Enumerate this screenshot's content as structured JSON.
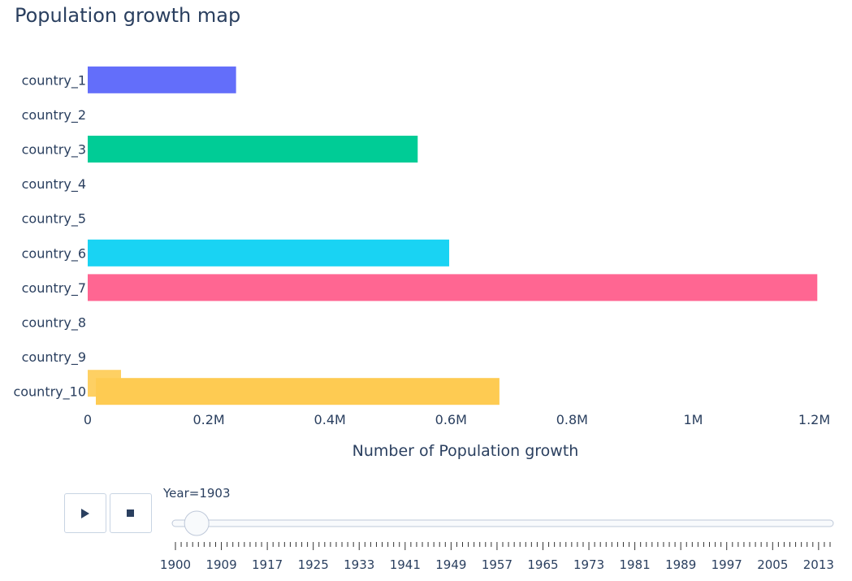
{
  "title": "Population growth map",
  "controls": {
    "play_icon": "play-icon",
    "stop_icon": "stop-icon",
    "slider_prefix": "Year=",
    "slider_value": "1903",
    "slider_fraction": 0.025,
    "tick_labels": [
      "1900",
      "1909",
      "1917",
      "1925",
      "1933",
      "1941",
      "1949",
      "1957",
      "1965",
      "1973",
      "1981",
      "1989",
      "1997",
      "2005",
      "2013"
    ]
  },
  "chart_data": {
    "type": "bar",
    "orientation": "horizontal",
    "title": "Population growth map",
    "xlabel": "Number of Population growth",
    "ylabel": "",
    "xlim": [
      0,
      1.21
    ],
    "x_ticks": [
      0,
      0.2,
      0.4,
      0.6,
      0.8,
      1.0,
      1.2
    ],
    "x_tick_labels": [
      "0",
      "0.2M",
      "0.4M",
      "0.6M",
      "0.8M",
      "1M",
      "1.2M"
    ],
    "categories": [
      "country_1",
      "country_2",
      "country_3",
      "country_4",
      "country_5",
      "country_6",
      "country_7",
      "country_8",
      "country_9",
      "country_10"
    ],
    "values_millions": [
      0.245,
      0,
      0.545,
      0,
      0,
      0.597,
      1.205,
      0,
      0,
      0.68
    ],
    "extra_bar_country_10_millions": 0.055,
    "colors": [
      "#636efa",
      "#EF553B",
      "#00cc96",
      "#ab63fa",
      "#FFA15A",
      "#19d3f3",
      "#FF6692",
      "#B6E880",
      "#FF97FF",
      "#FECB52"
    ],
    "grid": false,
    "legend": "none"
  }
}
